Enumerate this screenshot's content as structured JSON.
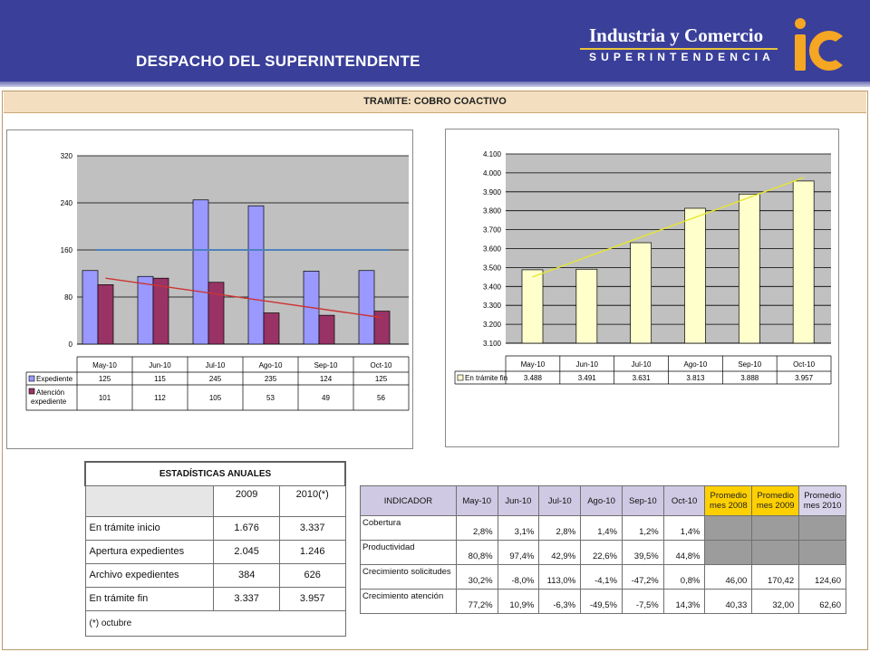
{
  "header": {
    "title": "DESPACHO DEL SUPERINTENDENTE",
    "brand_name": "Industria y Comercio",
    "brand_sub": "SUPERINTENDENCIA",
    "colors": {
      "header_bg": "#3a3f9a",
      "brand_accent": "#e8c23a",
      "logo": "#f5a623"
    }
  },
  "section": {
    "title": "TRAMITE: COBRO COACTIVO"
  },
  "chart_data": [
    {
      "type": "bar",
      "categories": [
        "May-10",
        "Jun-10",
        "Jul-10",
        "Ago-10",
        "Sep-10",
        "Oct-10"
      ],
      "series": [
        {
          "name": "Expediente",
          "values": [
            125,
            115,
            245,
            235,
            124,
            125
          ],
          "color": "#9999ff"
        },
        {
          "name": "Atención expediente",
          "values": [
            101,
            112,
            105,
            53,
            49,
            56
          ],
          "color": "#993366"
        }
      ],
      "yticks": [
        "0",
        "80",
        "160",
        "240",
        "320"
      ],
      "ylim": [
        0,
        320
      ],
      "reference_line": {
        "value": 160,
        "color": "#4f81bd"
      },
      "trendline": {
        "series": "Atención expediente",
        "start": 112,
        "end": 45,
        "color": "#cc3333"
      },
      "grid": true,
      "legend": "data-table"
    },
    {
      "type": "bar",
      "categories": [
        "May-10",
        "Jun-10",
        "Jul-10",
        "Ago-10",
        "Sep-10",
        "Oct-10"
      ],
      "series": [
        {
          "name": "En trámite fin",
          "values": [
            3488,
            3491,
            3631,
            3813,
            3888,
            3957
          ],
          "labels": [
            "3.488",
            "3.491",
            "3.631",
            "3.813",
            "3.888",
            "3.957"
          ],
          "color": "#ffffcc"
        }
      ],
      "yticks": [
        "3.100",
        "3.200",
        "3.300",
        "3.400",
        "3.500",
        "3.600",
        "3.700",
        "3.800",
        "3.900",
        "4.000",
        "4.100"
      ],
      "ylim": [
        3100,
        4100
      ],
      "trendline": {
        "start": 3450,
        "end": 3975,
        "color": "#e6e62e"
      },
      "grid": true,
      "legend": "data-table"
    }
  ],
  "annual_stats": {
    "title": "ESTADÍSTICAS ANUALES",
    "columns": [
      "2009",
      "2010(*)"
    ],
    "rows": [
      {
        "label": "En trámite inicio",
        "values": [
          "1.676",
          "3.337"
        ]
      },
      {
        "label": "Apertura expedientes",
        "values": [
          "2.045",
          "1.246"
        ]
      },
      {
        "label": "Archivo expedientes",
        "values": [
          "384",
          "626"
        ]
      },
      {
        "label": "En trámite fin",
        "values": [
          "3.337",
          "3.957"
        ]
      }
    ],
    "note": "(*) octubre"
  },
  "indicators": {
    "header": "INDICADOR",
    "months": [
      "May-10",
      "Jun-10",
      "Jul-10",
      "Ago-10",
      "Sep-10",
      "Oct-10"
    ],
    "avg_headers": [
      {
        "line1": "Promedio",
        "line2": "mes 2008"
      },
      {
        "line1": "Promedio",
        "line2": "mes 2009"
      },
      {
        "line1": "Promedio",
        "line2": "mes 2010"
      }
    ],
    "rows": [
      {
        "label": "Cobertura",
        "values": [
          "2,8%",
          "3,1%",
          "2,8%",
          "1,4%",
          "1,2%",
          "1,4%"
        ],
        "avgs": null
      },
      {
        "label": "Productividad",
        "values": [
          "80,8%",
          "97,4%",
          "42,9%",
          "22,6%",
          "39,5%",
          "44,8%"
        ],
        "avgs": null
      },
      {
        "label": "Crecimiento solicitudes",
        "values": [
          "30,2%",
          "-8,0%",
          "113,0%",
          "-4,1%",
          "-47,2%",
          "0,8%"
        ],
        "avgs": [
          "46,00",
          "170,42",
          "124,60"
        ]
      },
      {
        "label": "Crecimiento atención",
        "values": [
          "77,2%",
          "10,9%",
          "-6,3%",
          "-49,5%",
          "-7,5%",
          "14,3%"
        ],
        "avgs": [
          "40,33",
          "32,00",
          "62,60"
        ]
      }
    ]
  }
}
